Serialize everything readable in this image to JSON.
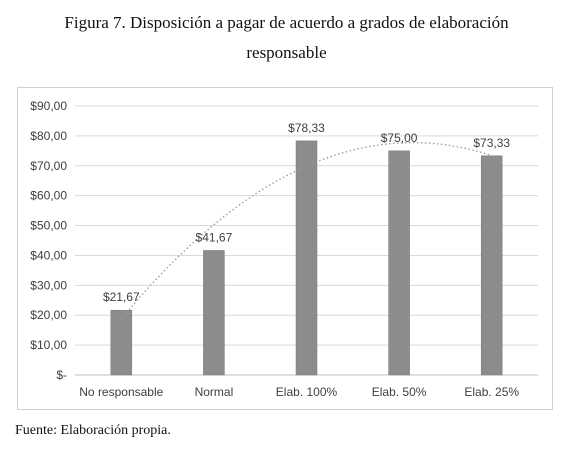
{
  "figure": {
    "title_line1": "Figura 7. Disposición a pagar de acuerdo a grados de elaboración",
    "title_line2": "responsable",
    "source": "Fuente: Elaboración propia."
  },
  "chart_data": {
    "type": "bar",
    "title": "Figura 7. Disposición a pagar de acuerdo a grados de elaboración responsable",
    "xlabel": "",
    "ylabel": "",
    "categories": [
      "No responsable",
      "Normal",
      "Elab. 100%",
      "Elab. 50%",
      "Elab. 25%"
    ],
    "values": [
      21.67,
      41.67,
      78.33,
      75.0,
      73.33
    ],
    "data_labels": [
      "$21,67",
      "$41,67",
      "$78,33",
      "$75,00",
      "$73,33"
    ],
    "ylim": [
      0,
      90
    ],
    "y_ticks": [
      0,
      10,
      20,
      30,
      40,
      50,
      60,
      70,
      80,
      90
    ],
    "y_tick_labels": [
      "$-",
      "$10,00",
      "$20,00",
      "$30,00",
      "$40,00",
      "$50,00",
      "$60,00",
      "$70,00",
      "$80,00",
      "$90,00"
    ],
    "grid": true,
    "trendline": "polynomial",
    "colors": {
      "bar": "#8c8c8c",
      "grid": "#d9d9d9",
      "trend": "#999999"
    }
  }
}
